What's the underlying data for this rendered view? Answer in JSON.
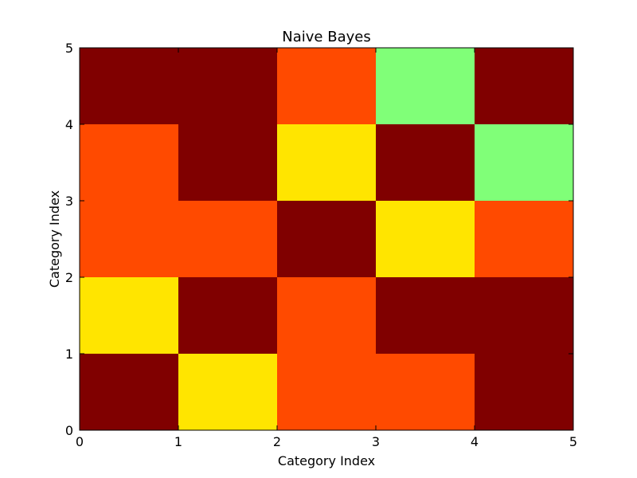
{
  "chart_data": {
    "type": "heatmap",
    "title": "Naive Bayes",
    "xlabel": "Category Index",
    "ylabel": "Category Index",
    "xlim": [
      0,
      5
    ],
    "ylim": [
      0,
      5
    ],
    "xticks": [
      "0",
      "1",
      "2",
      "3",
      "4",
      "5"
    ],
    "yticks": [
      "0",
      "1",
      "2",
      "3",
      "4",
      "5"
    ],
    "rows_bottom_to_top": [
      [
        "#800000",
        "#ffe500",
        "#ff4a00",
        "#ff4a00",
        "#800000"
      ],
      [
        "#ffe500",
        "#800000",
        "#ff4a00",
        "#800000",
        "#800000"
      ],
      [
        "#ff4a00",
        "#ff4a00",
        "#800000",
        "#ffe500",
        "#ff4a00"
      ],
      [
        "#ff4a00",
        "#800000",
        "#ffe500",
        "#800000",
        "#80ff78"
      ],
      [
        "#800000",
        "#800000",
        "#ff4a00",
        "#80ff78",
        "#800000"
      ]
    ],
    "grid": false,
    "legend": "none"
  }
}
